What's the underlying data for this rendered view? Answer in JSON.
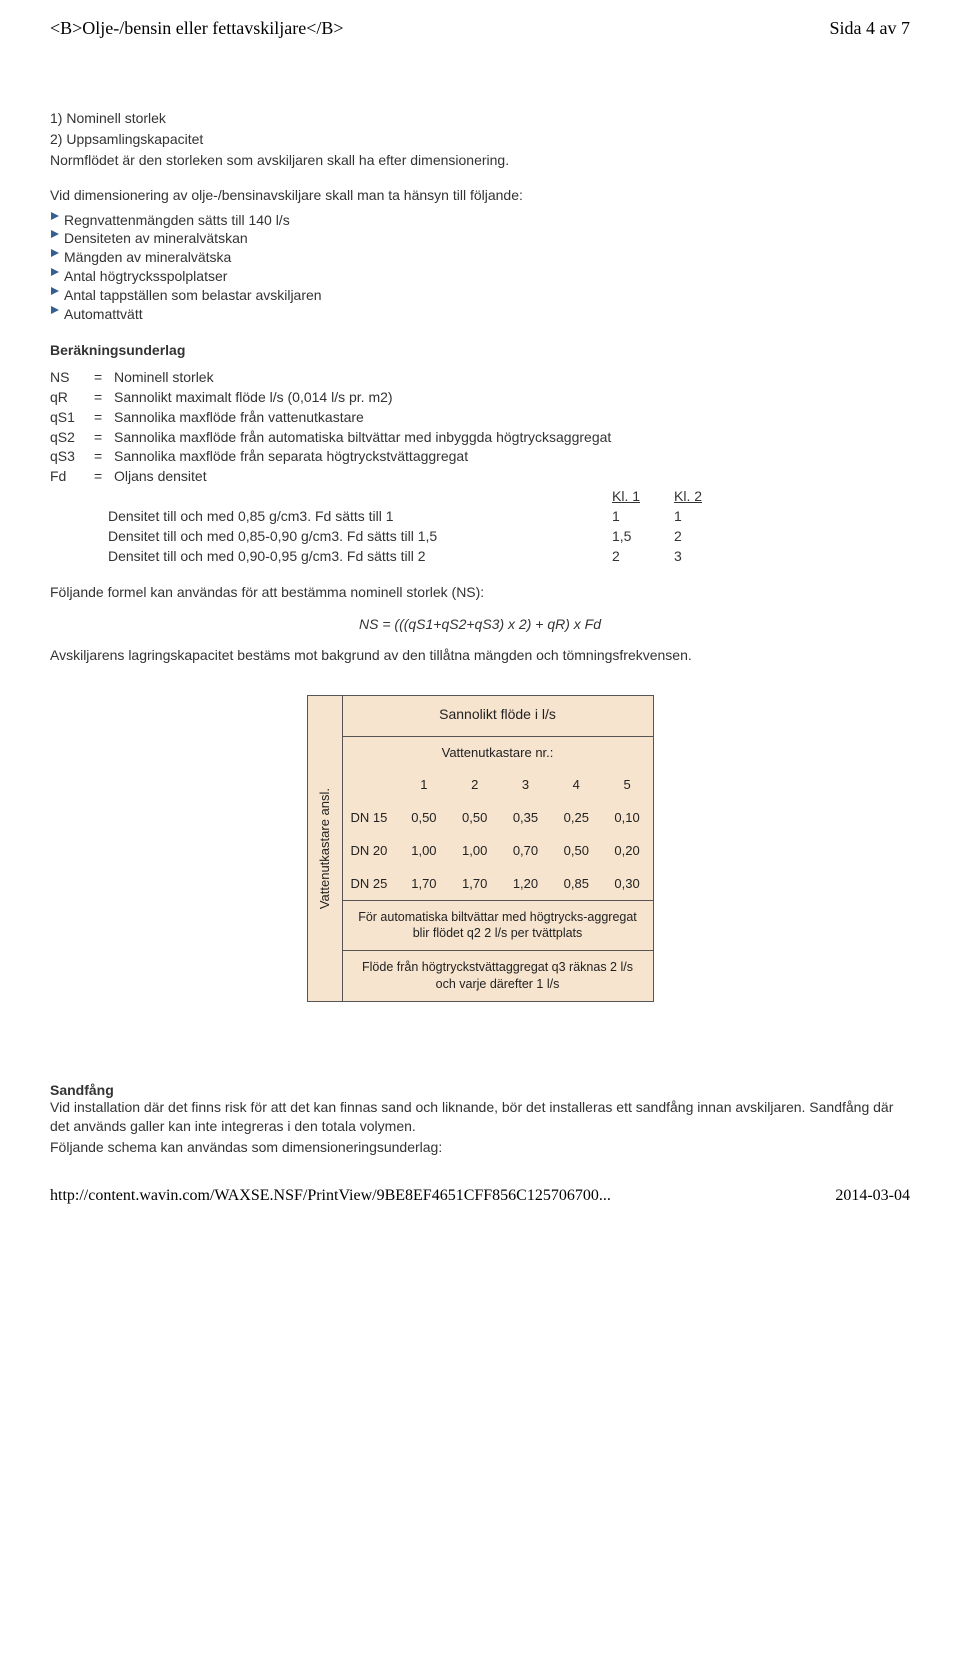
{
  "header": {
    "title_raw": "<B>Olje-/bensin eller fettavskiljare</B>",
    "page_label": "Sida 4 av 7"
  },
  "intro": {
    "l1": "1) Nominell storlek",
    "l2": "2) Uppsamlingskapacitet",
    "l3": "Normflödet är den storleken som avskiljaren skall ha efter dimensionering."
  },
  "consider": {
    "lead": "Vid dimensionering av olje-/bensinavskiljare skall man ta hänsyn till följande:",
    "items": [
      "Regnvattenmängden sätts till 140 l/s",
      "Densiteten av mineralvätskan",
      "Mängden av mineralvätska",
      "Antal högtrycksspolplatser",
      "Antal tappställen som belastar avskiljaren",
      "Automattvätt"
    ]
  },
  "calc_heading": "Beräkningsunderlag",
  "defs": [
    {
      "sym": "NS",
      "eq": "=",
      "txt": "Nominell storlek"
    },
    {
      "sym": "qR",
      "eq": "=",
      "txt": "Sannolikt maximalt flöde l/s (0,014 l/s pr. m2)"
    },
    {
      "sym": "qS1",
      "eq": "=",
      "txt": "Sannolika maxflöde från vattenutkastare"
    },
    {
      "sym": "qS2",
      "eq": "=",
      "txt": "Sannolika maxflöde från automatiska biltvättar med inbyggda högtrycksaggregat"
    },
    {
      "sym": "qS3",
      "eq": "=",
      "txt": "Sannolika maxflöde från separata högtryckstvättaggregat"
    },
    {
      "sym": "Fd",
      "eq": "=",
      "txt": "Oljans densitet"
    }
  ],
  "density": {
    "head": {
      "c1": "Kl. 1",
      "c2": "Kl. 2"
    },
    "rows": [
      {
        "lbl": "Densitet till och med 0,85 g/cm3. Fd sätts till 1",
        "c1": "1",
        "c2": "1"
      },
      {
        "lbl": "Densitet till och med 0,85-0,90 g/cm3. Fd sätts till 1,5",
        "c1": "1,5",
        "c2": "2"
      },
      {
        "lbl": "Densitet till och med 0,90-0,95 g/cm3. Fd sätts till 2",
        "c1": "2",
        "c2": "3"
      }
    ]
  },
  "formula_lead": "Följande formel kan användas för att bestämma nominell storlek (NS):",
  "formula": "NS = (((qS1+qS2+qS3) x 2) + qR) x Fd",
  "capacity_note": "Avskiljarens lagringskapacitet bestäms mot bakgrund av den tillåtna mängden och tömningsfrekvensen.",
  "flow_table": {
    "vlabel": "Vattenutkastare ansl.",
    "title": "Sannolikt flöde i l/s",
    "subtitle": "Vattenutkastare nr.:",
    "col_headers": [
      "1",
      "2",
      "3",
      "4",
      "5"
    ],
    "rows": [
      {
        "h": "DN 15",
        "v": [
          "0,50",
          "0,50",
          "0,35",
          "0,25",
          "0,10"
        ]
      },
      {
        "h": "DN 20",
        "v": [
          "1,00",
          "1,00",
          "0,70",
          "0,50",
          "0,20"
        ]
      },
      {
        "h": "DN 25",
        "v": [
          "1,70",
          "1,70",
          "1,20",
          "0,85",
          "0,30"
        ]
      }
    ],
    "note1": "För automatiska biltvättar med högtrycks-aggregat blir flödet q2 2 l/s per tvättplats",
    "note2": "Flöde från högtryckstvättaggregat q3 räknas 2 l/s och varje därefter 1 l/s",
    "bg_color": "#f6e4cf",
    "border_color": "#555555"
  },
  "sandfang": {
    "title": "Sandfång",
    "p1": "Vid installation där det finns risk för att det kan finnas sand och liknande, bör det installeras ett sandfång innan avskiljaren. Sandfång där det används galler kan inte integreras i den totala volymen.",
    "p2": "Följande schema kan användas som dimensioneringsunderlag:"
  },
  "footer": {
    "url": "http://content.wavin.com/WAXSE.NSF/PrintView/9BE8EF4651CFF856C125706700...",
    "date": "2014-03-04"
  },
  "colors": {
    "text": "#333333",
    "arrow": "#355f8f",
    "body_bg": "#ffffff"
  }
}
